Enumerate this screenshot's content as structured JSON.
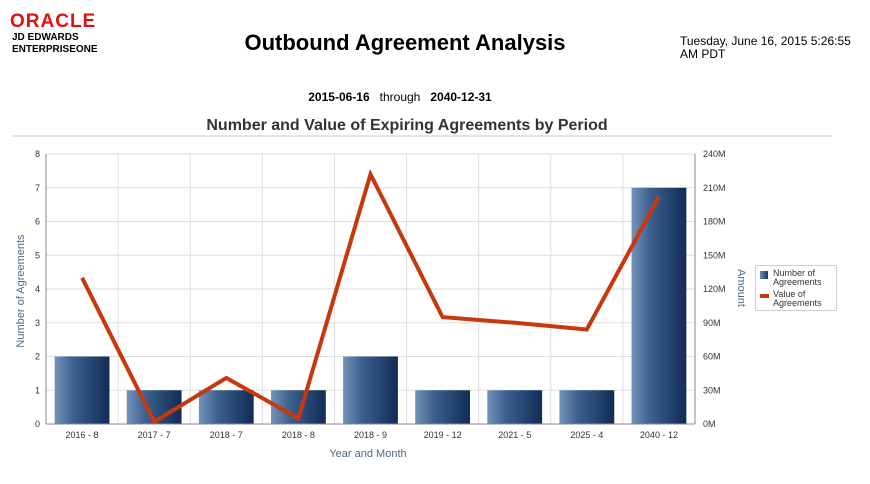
{
  "header": {
    "logo_primary": "ORACLE",
    "logo_line1": "JD EDWARDS",
    "logo_line2": "ENTERPRISEONE",
    "title": "Outbound Agreement Analysis",
    "timestamp_line1": "Tuesday, June 16, 2015 5:26:55",
    "timestamp_line2": "AM PDT",
    "date_from": "2015-06-16",
    "through_label": "through",
    "date_to": "2040-12-31"
  },
  "chart_data": {
    "type": "bar",
    "title": "Number and Value of Expiring Agreements by Period",
    "xlabel": "Year and Month",
    "ylabel": "Number of Agreements",
    "y2label": "Amount",
    "categories": [
      "2016 - 8",
      "2017 - 7",
      "2018 - 7",
      "2018 - 8",
      "2018 - 9",
      "2019 - 12",
      "2021 - 5",
      "2025 - 4",
      "2040 - 12"
    ],
    "series": [
      {
        "name": "Number of Agreements",
        "type": "bar",
        "axis": "left",
        "color": "#1f416f",
        "values": [
          2,
          1,
          1,
          1,
          2,
          1,
          1,
          1,
          7
        ]
      },
      {
        "name": "Value of Agreements",
        "type": "line",
        "axis": "right",
        "color": "#c8380e",
        "values": [
          130000000,
          2000000,
          41000000,
          5000000,
          222000000,
          95000000,
          90000000,
          84000000,
          202000000
        ]
      }
    ],
    "ylim": [
      0,
      8
    ],
    "y_ticks": [
      "0",
      "1",
      "2",
      "3",
      "4",
      "5",
      "6",
      "7",
      "8"
    ],
    "y2lim": [
      0,
      240000000
    ],
    "y2_ticks": [
      "0M",
      "30M",
      "60M",
      "90M",
      "120M",
      "150M",
      "180M",
      "210M",
      "240M"
    ],
    "grid": true,
    "legend_position": "right"
  }
}
